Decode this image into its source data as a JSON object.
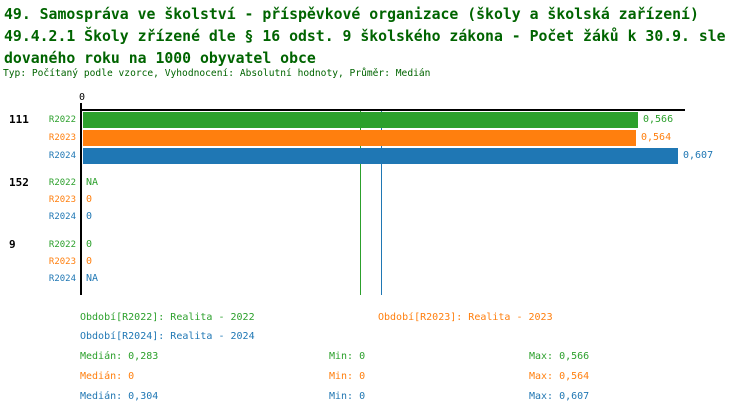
{
  "title": {
    "line1": "49. Samospráva ve školství - příspěvkové organizace (školy a školská zařízení)",
    "line2": "49.4.2.1 Školy zřízené dle § 16 odst. 9 školského zákona - Počet žáků k 30.9. sle",
    "line3": "dovaného roku na 1000 obyvatel obce",
    "meta": "Typ: Počítaný podle vzorce, Vyhodnocení: Absolutní hodnoty, Průměr: Medián"
  },
  "colors": {
    "heading": "#006400",
    "r2022": "#2ca02c",
    "r2023": "#ff7f0e",
    "r2024": "#1f77b4",
    "axis": "#000000",
    "background": "#ffffff"
  },
  "chart_data": {
    "type": "bar",
    "orientation": "horizontal",
    "title": "49.4.2.1 Školy zřízené dle § 16 odst. 9 školského zákona - Počet žáků k 30.9. sledovaného roku na 1000 obyvatel obce",
    "x_axis": {
      "zero_label": "0",
      "xlim": [
        0,
        0.617
      ],
      "grid": false
    },
    "series": [
      "R2022",
      "R2023",
      "R2024"
    ],
    "groups": [
      {
        "label": "111",
        "values": [
          0.566,
          0.564,
          0.607
        ],
        "displays": [
          "0,566",
          "0,564",
          "0,607"
        ]
      },
      {
        "label": "152",
        "values": [
          null,
          0,
          0
        ],
        "displays": [
          "NA",
          "0",
          "0"
        ]
      },
      {
        "label": "9",
        "values": [
          0,
          0,
          null
        ],
        "displays": [
          "0",
          "0",
          "NA"
        ]
      }
    ],
    "median_lines": [
      {
        "series": "R2022",
        "value": 0.283
      },
      {
        "series": "R2023",
        "value": 0
      },
      {
        "series": "R2024",
        "value": 0.304
      }
    ],
    "stats": [
      {
        "series": "R2022",
        "median": 0.283,
        "min": 0,
        "max": 0.566
      },
      {
        "series": "R2023",
        "median": 0,
        "min": 0,
        "max": 0.564
      },
      {
        "series": "R2024",
        "median": 0.304,
        "min": 0,
        "max": 0.607
      }
    ]
  },
  "legend": {
    "r2022": "Období[R2022]: Realita - 2022",
    "r2023": "Období[R2023]: Realita - 2023",
    "r2024": "Období[R2024]: Realita - 2024"
  },
  "stats_display": [
    {
      "median": "Medián: 0,283",
      "min": "Min: 0",
      "max": "Max: 0,566"
    },
    {
      "median": "Medián: 0",
      "min": "Min: 0",
      "max": "Max: 0,564"
    },
    {
      "median": "Medián: 0,304",
      "min": "Min: 0",
      "max": "Max: 0,607"
    }
  ]
}
